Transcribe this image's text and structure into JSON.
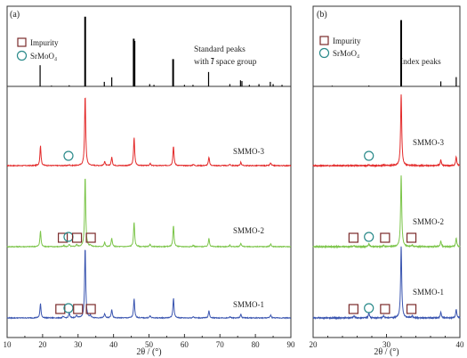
{
  "chart_data": [
    {
      "type": "line",
      "panel_label": "(a)",
      "xlabel": "2θ / (°)",
      "xlim": [
        10,
        90
      ],
      "x_ticks": [
        10,
        20,
        30,
        40,
        50,
        60,
        70,
        80,
        90
      ],
      "ylabel": "",
      "y_ticks_shown": false,
      "grid": false,
      "legend": {
        "placement": "top-left",
        "entries": [
          {
            "name": "Impurity",
            "marker": "square",
            "color": "#7a2a2a"
          },
          {
            "name": "SrMoO₄",
            "marker": "circle",
            "color": "#2a8a8a"
          }
        ]
      },
      "reference": {
        "name_line1": "Standard  peaks",
        "name_line2_prefix": "with ",
        "name_line2_sym": "I",
        "name_line2_suffix": " space group",
        "color": "#000000",
        "peaks": [
          {
            "x": 19.3,
            "h": 0.28
          },
          {
            "x": 22.5,
            "h": 0.01
          },
          {
            "x": 27.5,
            "h": 0.015
          },
          {
            "x": 32.0,
            "h": 0.92
          },
          {
            "x": 37.4,
            "h": 0.06
          },
          {
            "x": 39.5,
            "h": 0.12
          },
          {
            "x": 45.7,
            "h": 0.63
          },
          {
            "x": 45.9,
            "h": 0.6
          },
          {
            "x": 50.2,
            "h": 0.03
          },
          {
            "x": 51.4,
            "h": 0.02
          },
          {
            "x": 56.8,
            "h": 0.36
          },
          {
            "x": 60.0,
            "h": 0.02
          },
          {
            "x": 62.4,
            "h": 0.02
          },
          {
            "x": 66.8,
            "h": 0.19
          },
          {
            "x": 72.8,
            "h": 0.03
          },
          {
            "x": 75.8,
            "h": 0.08
          },
          {
            "x": 76.2,
            "h": 0.07
          },
          {
            "x": 78.3,
            "h": 0.02
          },
          {
            "x": 81.0,
            "h": 0.03
          },
          {
            "x": 84.2,
            "h": 0.06
          },
          {
            "x": 85.0,
            "h": 0.03
          },
          {
            "x": 87.5,
            "h": 0.02
          }
        ]
      },
      "series": [
        {
          "name": "SMMO-3",
          "color": "#e32b2b",
          "peaks": [
            {
              "x": 19.4,
              "h": 0.28
            },
            {
              "x": 27.5,
              "h": 0.012
            },
            {
              "x": 32.0,
              "h": 1.0
            },
            {
              "x": 37.5,
              "h": 0.06
            },
            {
              "x": 39.5,
              "h": 0.12
            },
            {
              "x": 45.8,
              "h": 0.4
            },
            {
              "x": 50.3,
              "h": 0.03
            },
            {
              "x": 56.9,
              "h": 0.28
            },
            {
              "x": 62.5,
              "h": 0.02
            },
            {
              "x": 66.9,
              "h": 0.12
            },
            {
              "x": 72.8,
              "h": 0.02
            },
            {
              "x": 75.9,
              "h": 0.05
            },
            {
              "x": 84.3,
              "h": 0.04
            }
          ],
          "markers": [
            {
              "type": "circle",
              "x": 27.3
            }
          ]
        },
        {
          "name": "SMMO-2",
          "color": "#7cc54a",
          "peaks": [
            {
              "x": 19.4,
              "h": 0.22
            },
            {
              "x": 26.0,
              "h": 0.015
            },
            {
              "x": 27.5,
              "h": 0.03
            },
            {
              "x": 29.6,
              "h": 0.03
            },
            {
              "x": 32.0,
              "h": 1.0
            },
            {
              "x": 33.5,
              "h": 0.02
            },
            {
              "x": 37.5,
              "h": 0.06
            },
            {
              "x": 39.5,
              "h": 0.12
            },
            {
              "x": 45.8,
              "h": 0.35
            },
            {
              "x": 50.3,
              "h": 0.03
            },
            {
              "x": 56.9,
              "h": 0.3
            },
            {
              "x": 62.5,
              "h": 0.02
            },
            {
              "x": 66.9,
              "h": 0.12
            },
            {
              "x": 72.8,
              "h": 0.02
            },
            {
              "x": 75.9,
              "h": 0.05
            },
            {
              "x": 84.3,
              "h": 0.04
            }
          ],
          "markers": [
            {
              "type": "square",
              "x": 25.7
            },
            {
              "type": "circle",
              "x": 27.3
            },
            {
              "type": "square",
              "x": 29.7
            },
            {
              "type": "square",
              "x": 33.6
            }
          ]
        },
        {
          "name": "SMMO-1",
          "color": "#3a55b0",
          "peaks": [
            {
              "x": 19.4,
              "h": 0.2
            },
            {
              "x": 25.8,
              "h": 0.02
            },
            {
              "x": 27.5,
              "h": 0.07
            },
            {
              "x": 29.6,
              "h": 0.04
            },
            {
              "x": 32.0,
              "h": 1.0
            },
            {
              "x": 33.5,
              "h": 0.03
            },
            {
              "x": 37.5,
              "h": 0.06
            },
            {
              "x": 39.5,
              "h": 0.12
            },
            {
              "x": 45.8,
              "h": 0.27
            },
            {
              "x": 50.3,
              "h": 0.03
            },
            {
              "x": 56.9,
              "h": 0.28
            },
            {
              "x": 62.5,
              "h": 0.02
            },
            {
              "x": 66.9,
              "h": 0.1
            },
            {
              "x": 72.8,
              "h": 0.02
            },
            {
              "x": 75.9,
              "h": 0.05
            },
            {
              "x": 84.3,
              "h": 0.04
            }
          ],
          "markers": [
            {
              "type": "square",
              "x": 25.0
            },
            {
              "type": "circle",
              "x": 27.3
            },
            {
              "type": "square",
              "x": 30.0
            },
            {
              "type": "square",
              "x": 33.6
            }
          ]
        }
      ]
    },
    {
      "type": "line",
      "panel_label": "(b)",
      "xlabel": "2θ / (°)",
      "xlim": [
        20,
        40
      ],
      "x_ticks": [
        20,
        30,
        40
      ],
      "ylabel": "",
      "y_ticks_shown": false,
      "grid": false,
      "legend": {
        "placement": "top-left",
        "entries": [
          {
            "name": "Impurity",
            "marker": "square",
            "color": "#7a2a2a"
          },
          {
            "name": "SrMoO₄",
            "marker": "circle",
            "color": "#2a8a8a"
          }
        ]
      },
      "reference": {
        "name": "Index peaks",
        "color": "#000000",
        "peaks": [
          {
            "x": 22.6,
            "h": 0.01
          },
          {
            "x": 27.6,
            "h": 0.012
          },
          {
            "x": 32.0,
            "h": 0.93
          },
          {
            "x": 37.4,
            "h": 0.07
          },
          {
            "x": 39.5,
            "h": 0.13
          }
        ]
      },
      "series": [
        {
          "name": "SMMO-3",
          "color": "#e32b2b",
          "peaks": [
            {
              "x": 27.6,
              "h": 0.012
            },
            {
              "x": 29.6,
              "h": 0.01
            },
            {
              "x": 32.0,
              "h": 1.0
            },
            {
              "x": 37.4,
              "h": 0.08
            },
            {
              "x": 39.5,
              "h": 0.12
            }
          ],
          "markers": [
            {
              "type": "circle",
              "x": 27.6
            }
          ]
        },
        {
          "name": "SMMO-2",
          "color": "#7cc54a",
          "peaks": [
            {
              "x": 25.6,
              "h": 0.015
            },
            {
              "x": 27.6,
              "h": 0.04
            },
            {
              "x": 29.6,
              "h": 0.02
            },
            {
              "x": 32.0,
              "h": 1.0
            },
            {
              "x": 33.5,
              "h": 0.02
            },
            {
              "x": 37.4,
              "h": 0.08
            },
            {
              "x": 39.5,
              "h": 0.12
            }
          ],
          "markers": [
            {
              "type": "square",
              "x": 25.5
            },
            {
              "type": "circle",
              "x": 27.6
            },
            {
              "type": "square",
              "x": 29.8
            },
            {
              "type": "square",
              "x": 33.4
            }
          ]
        },
        {
          "name": "SMMO-1",
          "color": "#3a55b0",
          "peaks": [
            {
              "x": 25.6,
              "h": 0.03
            },
            {
              "x": 27.6,
              "h": 0.07
            },
            {
              "x": 29.6,
              "h": 0.03
            },
            {
              "x": 32.0,
              "h": 1.0
            },
            {
              "x": 33.5,
              "h": 0.03
            },
            {
              "x": 37.4,
              "h": 0.08
            },
            {
              "x": 39.5,
              "h": 0.12
            }
          ],
          "markers": [
            {
              "type": "square",
              "x": 25.5
            },
            {
              "type": "circle",
              "x": 27.6
            },
            {
              "type": "square",
              "x": 29.8
            },
            {
              "type": "square",
              "x": 33.4
            }
          ]
        }
      ]
    }
  ]
}
